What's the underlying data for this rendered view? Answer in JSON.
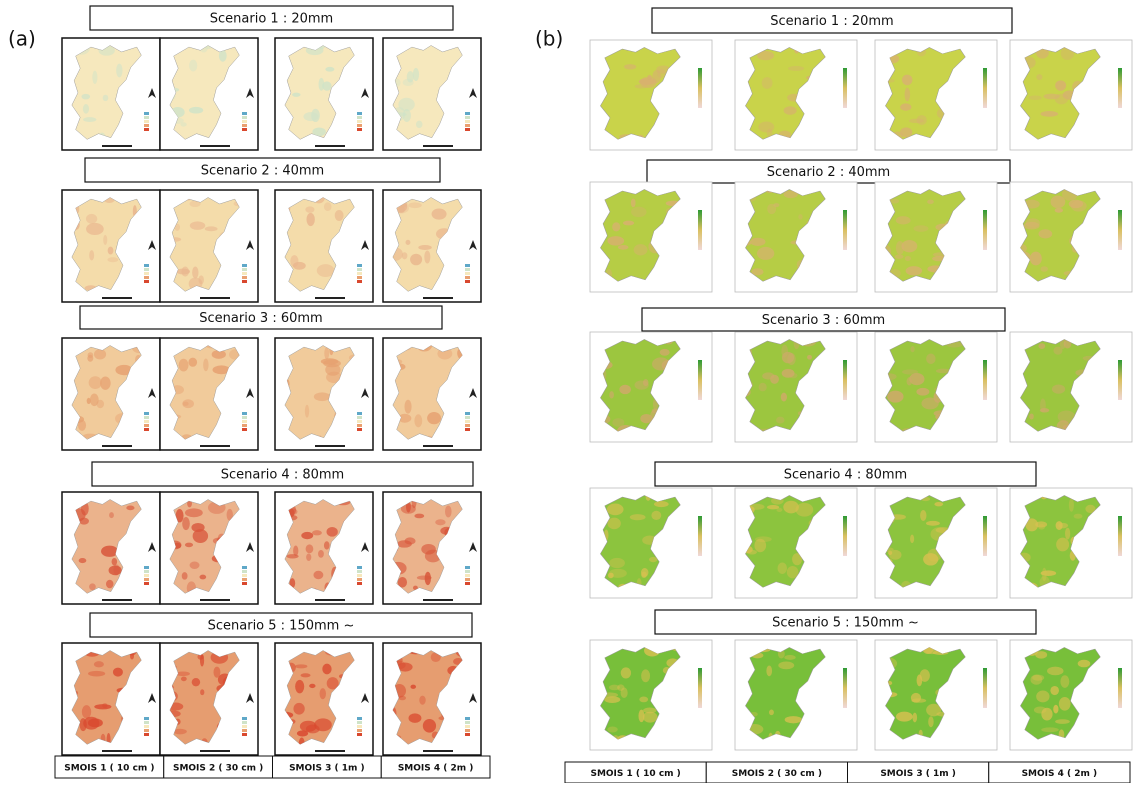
{
  "panels": [
    {
      "label": "(a)",
      "scenarios": [
        "Scenario 1 : 20mm",
        "Scenario 2 : 40mm",
        "Scenario 3 : 60mm",
        "Scenario 4 : 80mm",
        "Scenario 5 : 150mm ~"
      ],
      "columns": [
        "SMOIS 1 ( 10 cm )",
        "SMOIS 2 ( 30 cm )",
        "SMOIS 3 ( 1m )",
        "SMOIS 4 ( 2m )"
      ]
    },
    {
      "label": "(b)",
      "scenarios": [
        "Scenario 1 : 20mm",
        "Scenario 2 : 40mm",
        "Scenario 3 : 60mm",
        "Scenario 4 : 80mm",
        "Scenario 5 : 150mm ~"
      ],
      "columns": [
        "SMOIS 1 ( 10 cm )",
        "SMOIS 2 ( 30 cm )",
        "SMOIS 3 ( 1m )",
        "SMOIS 4 ( 2m )"
      ]
    }
  ]
}
